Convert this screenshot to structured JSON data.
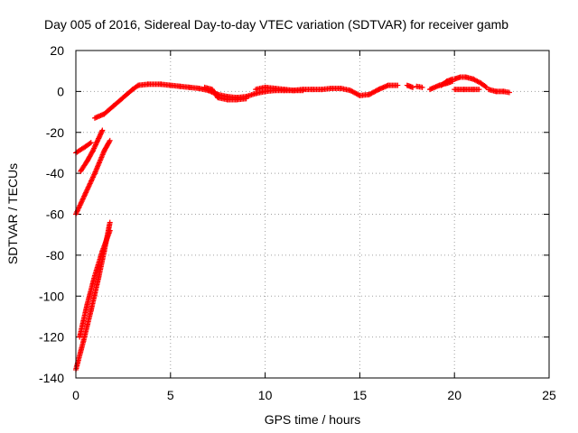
{
  "chart_data": {
    "type": "scatter",
    "title": "Day 005 of 2016, Sidereal Day-to-day VTEC variation (SDTVAR) for receiver gamb",
    "xlabel": "GPS time / hours",
    "ylabel": "SDTVAR / TECUs",
    "xlim": [
      0,
      25
    ],
    "ylim": [
      -140,
      20
    ],
    "xticks": [
      0,
      5,
      10,
      15,
      20,
      25
    ],
    "yticks": [
      -140,
      -120,
      -100,
      -80,
      -60,
      -40,
      -20,
      0,
      20
    ],
    "grid": true,
    "marker": "+",
    "series": [
      {
        "name": "SDTVAR",
        "color": "#ff0000",
        "segments": [
          [
            [
              0.0,
              -30
            ],
            [
              0.5,
              -27
            ],
            [
              0.8,
              -25
            ]
          ],
          [
            [
              0.25,
              -39
            ],
            [
              0.6,
              -34
            ],
            [
              0.9,
              -29
            ],
            [
              1.2,
              -23
            ],
            [
              1.4,
              -19
            ]
          ],
          [
            [
              0.0,
              -60
            ],
            [
              0.5,
              -50
            ],
            [
              1.0,
              -40
            ],
            [
              1.5,
              -29
            ],
            [
              1.8,
              -24
            ]
          ],
          [
            [
              1.0,
              -13
            ],
            [
              1.5,
              -11
            ],
            [
              2.0,
              -7
            ],
            [
              2.5,
              -3
            ],
            [
              3.0,
              1
            ],
            [
              3.3,
              3
            ]
          ],
          [
            [
              0.0,
              -136
            ],
            [
              0.4,
              -122
            ],
            [
              0.8,
              -107
            ],
            [
              1.2,
              -91
            ],
            [
              1.5,
              -78
            ],
            [
              1.8,
              -64
            ]
          ],
          [
            [
              0.2,
              -120
            ],
            [
              0.6,
              -104
            ],
            [
              1.0,
              -90
            ],
            [
              1.4,
              -78
            ],
            [
              1.8,
              -68
            ]
          ],
          [
            [
              3.3,
              3
            ],
            [
              3.8,
              3.5
            ],
            [
              4.5,
              3.5
            ],
            [
              5.0,
              3
            ],
            [
              5.5,
              2.5
            ],
            [
              6.0,
              2
            ],
            [
              6.5,
              1.5
            ],
            [
              7.0,
              0.5
            ],
            [
              7.5,
              -1.5
            ],
            [
              8.0,
              -2.5
            ],
            [
              8.5,
              -3
            ],
            [
              9.0,
              -2.5
            ],
            [
              9.5,
              -1
            ],
            [
              10.0,
              0
            ],
            [
              10.5,
              0.5
            ],
            [
              11.0,
              0.5
            ],
            [
              11.5,
              0.5
            ],
            [
              12.0,
              1
            ],
            [
              12.5,
              1
            ],
            [
              13.0,
              1
            ],
            [
              13.5,
              1.5
            ],
            [
              14.0,
              1.5
            ],
            [
              14.5,
              0.5
            ],
            [
              15.0,
              -2
            ],
            [
              15.5,
              -1.5
            ],
            [
              16.0,
              1
            ],
            [
              16.5,
              3
            ],
            [
              17.0,
              3
            ]
          ],
          [
            [
              6.8,
              2
            ],
            [
              7.2,
              1
            ],
            [
              7.5,
              -3
            ],
            [
              8.0,
              -4
            ],
            [
              8.5,
              -4
            ],
            [
              9.0,
              -3.5
            ]
          ],
          [
            [
              9.5,
              1
            ],
            [
              10.0,
              2
            ],
            [
              10.5,
              1.5
            ],
            [
              11.0,
              1
            ],
            [
              11.5,
              0.5
            ],
            [
              12.0,
              0.5
            ]
          ],
          [
            [
              17.5,
              3
            ],
            [
              17.8,
              2
            ]
          ],
          [
            [
              18.0,
              2.5
            ],
            [
              18.3,
              2
            ]
          ],
          [
            [
              18.7,
              1
            ],
            [
              19.2,
              3
            ],
            [
              19.6,
              4
            ],
            [
              19.9,
              5
            ]
          ],
          [
            [
              19.3,
              3
            ],
            [
              19.6,
              5
            ],
            [
              19.9,
              6
            ]
          ],
          [
            [
              20.0,
              6
            ],
            [
              20.3,
              7
            ],
            [
              20.6,
              7
            ],
            [
              21.0,
              6
            ],
            [
              21.4,
              4
            ],
            [
              21.7,
              2
            ]
          ],
          [
            [
              20.0,
              1
            ],
            [
              20.5,
              1
            ],
            [
              21.0,
              1
            ],
            [
              21.3,
              1
            ]
          ],
          [
            [
              21.8,
              1
            ],
            [
              22.2,
              0
            ],
            [
              22.6,
              0
            ],
            [
              22.9,
              -0.5
            ]
          ]
        ]
      }
    ]
  }
}
